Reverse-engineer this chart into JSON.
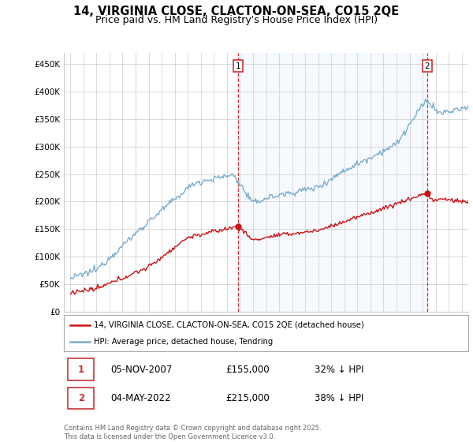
{
  "title": "14, VIRGINIA CLOSE, CLACTON-ON-SEA, CO15 2QE",
  "subtitle": "Price paid vs. HM Land Registry's House Price Index (HPI)",
  "footer": "Contains HM Land Registry data © Crown copyright and database right 2025.\nThis data is licensed under the Open Government Licence v3.0.",
  "legend_line1": "14, VIRGINIA CLOSE, CLACTON-ON-SEA, CO15 2QE (detached house)",
  "legend_line2": "HPI: Average price, detached house, Tendring",
  "annotation1": {
    "label": "1",
    "date": "05-NOV-2007",
    "price": "£155,000",
    "pct": "32% ↓ HPI"
  },
  "annotation2": {
    "label": "2",
    "date": "04-MAY-2022",
    "price": "£215,000",
    "pct": "38% ↓ HPI"
  },
  "vline1_x": 2007.85,
  "vline2_x": 2022.34,
  "ylim": [
    0,
    470000
  ],
  "xlim_start": 1994.5,
  "xlim_end": 2025.5,
  "hpi_color": "#7aadcf",
  "price_color": "#cc1111",
  "vline_color": "#cc3333",
  "background_color": "#ffffff",
  "grid_color": "#cccccc",
  "shade_color": "#ddeeff",
  "title_fontsize": 10.5,
  "subtitle_fontsize": 9,
  "ytick_labels": [
    "£0",
    "£50K",
    "£100K",
    "£150K",
    "£200K",
    "£250K",
    "£300K",
    "£350K",
    "£400K",
    "£450K"
  ],
  "ytick_values": [
    0,
    50000,
    100000,
    150000,
    200000,
    250000,
    300000,
    350000,
    400000,
    450000
  ],
  "marker1_x": 2007.85,
  "marker1_y": 155000,
  "marker2_x": 2022.34,
  "marker2_y": 215000
}
